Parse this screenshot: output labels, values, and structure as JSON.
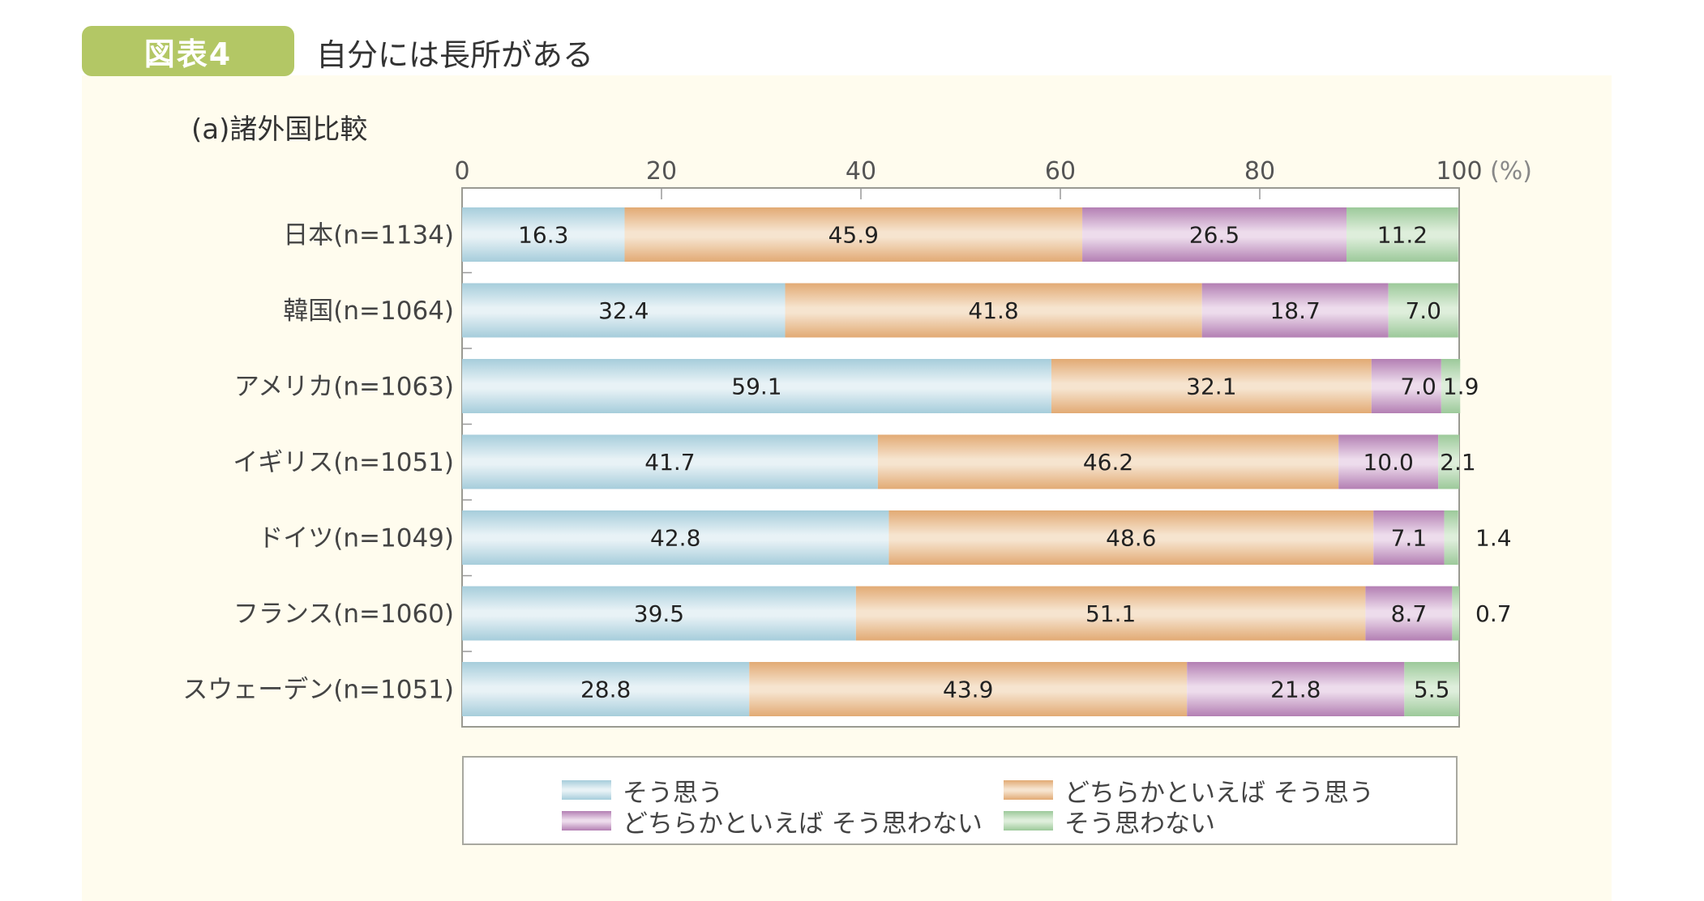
{
  "figure": {
    "badge": "図表4",
    "title": "自分には長所がある",
    "subtitle": "(a)諸外国比較"
  },
  "colors": {
    "badge": "#b3c765",
    "panel_bg": "#fffcee",
    "series": [
      {
        "edge": "#a6cddb",
        "mid": "#e8f2f6"
      },
      {
        "edge": "#e2aa74",
        "mid": "#f6e4cf"
      },
      {
        "edge": "#b37fb3",
        "mid": "#eddcec"
      },
      {
        "edge": "#9cc99a",
        "mid": "#deeedb"
      }
    ]
  },
  "chart_data": {
    "type": "bar",
    "orientation": "horizontal",
    "stacked": true,
    "title": "自分には長所がある",
    "subtitle": "(a)諸外国比較",
    "xlabel": "",
    "x_unit_label": "(%)",
    "xlim": [
      0,
      100
    ],
    "xticks": [
      0,
      20,
      40,
      60,
      80,
      100
    ],
    "xtick_labels": [
      "0",
      "20",
      "40",
      "60",
      "80",
      "100"
    ],
    "categories": [
      "日本(n=1134)",
      "韓国(n=1064)",
      "アメリカ(n=1063)",
      "イギリス(n=1051)",
      "ドイツ(n=1049)",
      "フランス(n=1060)",
      "スウェーデン(n=1051)"
    ],
    "series": [
      {
        "name": "そう思う",
        "values": [
          16.3,
          32.4,
          59.1,
          41.7,
          42.8,
          39.5,
          28.8
        ]
      },
      {
        "name": "どちらかといえば そう思う",
        "values": [
          45.9,
          41.8,
          32.1,
          46.2,
          48.6,
          51.1,
          43.9
        ]
      },
      {
        "name": "どちらかといえば そう思わない",
        "values": [
          26.5,
          18.7,
          7.0,
          10.0,
          7.1,
          8.7,
          21.8
        ]
      },
      {
        "name": "そう思わない",
        "values": [
          11.2,
          7.0,
          1.9,
          2.1,
          1.4,
          0.7,
          5.5
        ]
      }
    ],
    "data_labels": [
      [
        "16.3",
        "45.9",
        "26.5",
        "11.2"
      ],
      [
        "32.4",
        "41.8",
        "18.7",
        "7.0"
      ],
      [
        "59.1",
        "32.1",
        "7.0",
        "1.9"
      ],
      [
        "41.7",
        "46.2",
        "10.0",
        "2.1"
      ],
      [
        "42.8",
        "48.6",
        "7.1",
        "1.4"
      ],
      [
        "39.5",
        "51.1",
        "8.7",
        "0.7"
      ],
      [
        "28.8",
        "43.9",
        "21.8",
        "5.5"
      ]
    ],
    "legend": {
      "position": "bottom",
      "entries": [
        "そう思う",
        "どちらかといえば そう思う",
        "どちらかといえば そう思わない",
        "そう思わない"
      ]
    },
    "grid": false
  }
}
